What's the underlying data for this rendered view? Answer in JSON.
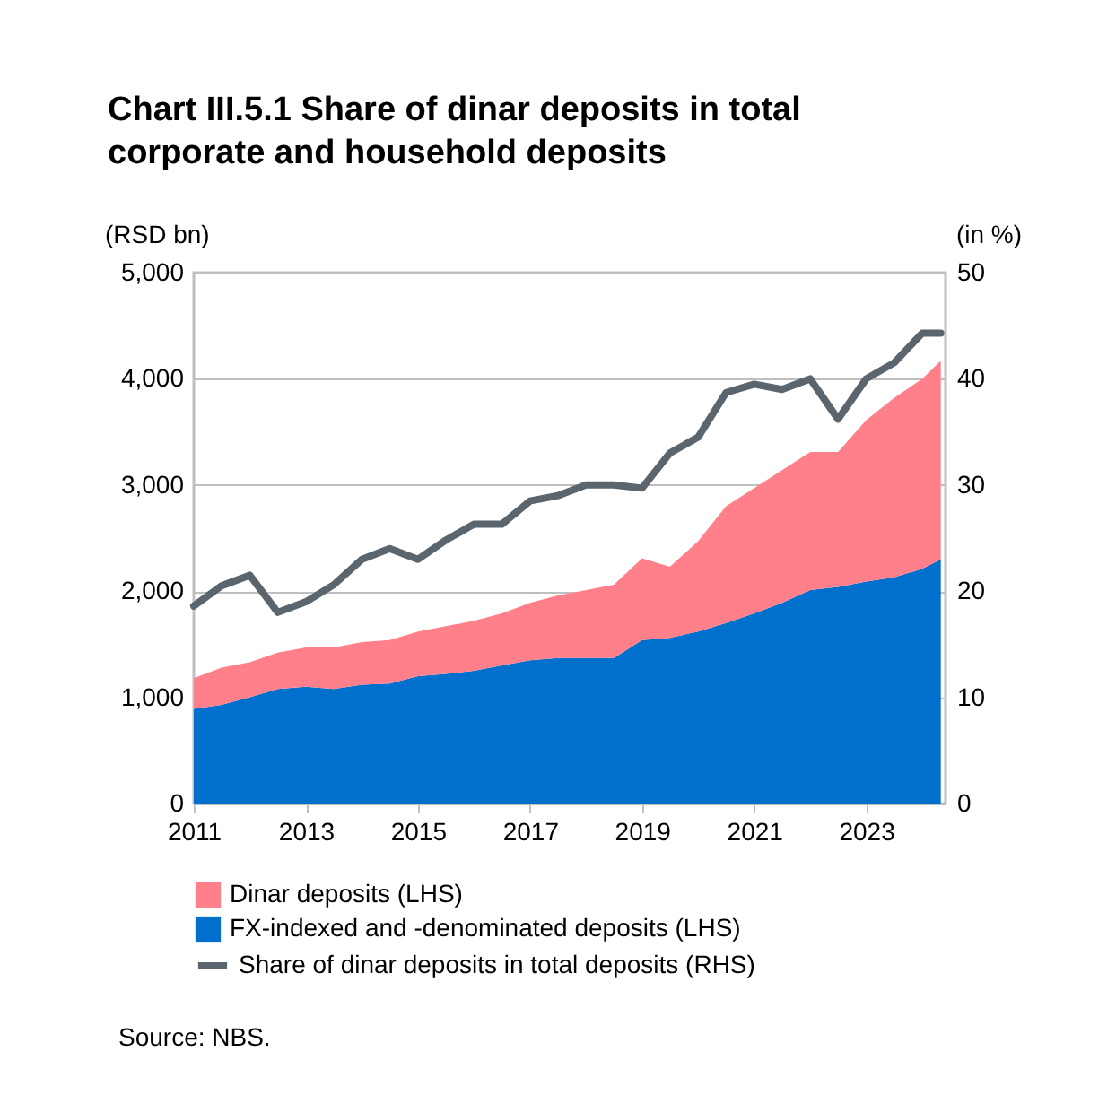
{
  "chart_data": {
    "type": "area",
    "title": "Chart III.5.1 Share of dinar deposits in total corporate and household deposits",
    "ylabel": "(RSD bn)",
    "y2label": "(in %)",
    "stacked": true,
    "x": [
      "2011-01",
      "2011-07",
      "2012-01",
      "2012-07",
      "2013-01",
      "2013-07",
      "2014-01",
      "2014-07",
      "2015-01",
      "2015-07",
      "2016-01",
      "2016-07",
      "2017-01",
      "2017-07",
      "2018-01",
      "2018-07",
      "2019-01",
      "2019-07",
      "2020-01",
      "2020-07",
      "2021-01",
      "2021-07",
      "2022-01",
      "2022-07",
      "2023-01",
      "2023-07",
      "2024-01",
      "2024-05"
    ],
    "series": [
      {
        "name": "FX-indexed and -denominated deposits (LHS)",
        "color": "#0070cc",
        "values": [
          890,
          930,
          1000,
          1080,
          1100,
          1080,
          1120,
          1130,
          1200,
          1220,
          1250,
          1300,
          1350,
          1370,
          1370,
          1370,
          1540,
          1560,
          1620,
          1700,
          1790,
          1890,
          2010,
          2040,
          2090,
          2130,
          2210,
          2300
        ]
      },
      {
        "name": "Dinar deposits (LHS)",
        "color": "#ff808b",
        "values": [
          290,
          350,
          330,
          340,
          370,
          390,
          400,
          410,
          420,
          450,
          470,
          490,
          540,
          590,
          640,
          690,
          770,
          670,
          850,
          1100,
          1180,
          1250,
          1300,
          1270,
          1520,
          1690,
          1790,
          1870
        ]
      },
      {
        "name": "Share of dinar deposits in total deposits (RHS)",
        "type": "line",
        "axis": "y2",
        "color": "#5a656e",
        "values": [
          18.6,
          20.5,
          21.5,
          18,
          19,
          20.6,
          23,
          24,
          23,
          24.8,
          26.3,
          26.3,
          28.5,
          29,
          30,
          30,
          29.7,
          33,
          34.5,
          38.7,
          39.5,
          39,
          40,
          36.2,
          40,
          41.5,
          44.3,
          44.3
        ]
      }
    ],
    "xlim": [
      "2011-01",
      "2024-06"
    ],
    "xticks": [
      "2011",
      "2013",
      "2015",
      "2017",
      "2019",
      "2021",
      "2023"
    ],
    "ylim": [
      0,
      5000
    ],
    "yticks": [
      0,
      {
        "value": 1000,
        "label": "1,000"
      },
      {
        "value": 2000,
        "label": "2,000"
      },
      {
        "value": 3000,
        "label": "3,000"
      },
      {
        "value": 4000,
        "label": "4,000"
      },
      {
        "value": 5000,
        "label": "5,000"
      }
    ],
    "y2lim": [
      0,
      50
    ],
    "y2ticks": [
      0,
      10,
      20,
      30,
      40,
      50
    ],
    "grid": "y",
    "legend": "bottom left",
    "line_style": "solid",
    "marker": "none",
    "annotations": [
      "Source: NBS."
    ]
  }
}
